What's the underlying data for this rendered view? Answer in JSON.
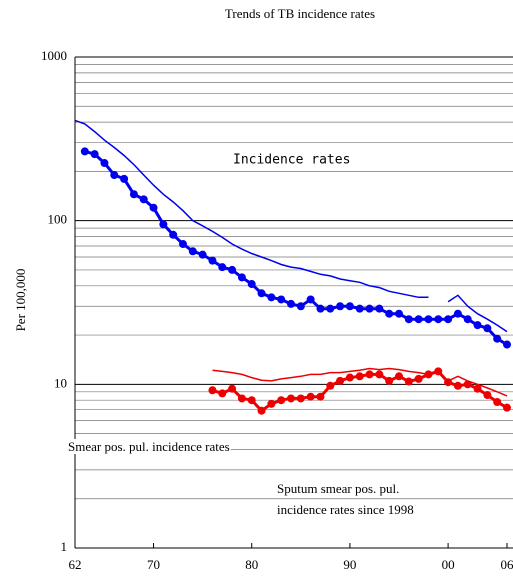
{
  "chart_data": {
    "type": "line",
    "title": "Trends of TB incidence rates",
    "ylabel": "Per 100,000",
    "log_y": true,
    "grid": true,
    "xlim": [
      62,
      106
    ],
    "xticks": [
      62,
      70,
      80,
      90,
      {
        "value": 100,
        "label": "00"
      },
      {
        "value": 106,
        "label": "06"
      }
    ],
    "ylim": [
      1,
      1000
    ],
    "yticks": [
      1,
      10,
      100,
      1000
    ],
    "yminorticks": [
      2,
      3,
      4,
      5,
      6,
      7,
      8,
      9,
      20,
      30,
      40,
      50,
      60,
      70,
      80,
      90,
      200,
      300,
      400,
      500,
      600,
      700,
      800,
      900
    ],
    "annotations": [
      "Incidence rates",
      "Smear pos. pul. incidence rates",
      "Sputum smear pos. pul.",
      "incidence rates since 1998"
    ],
    "series": [
      {
        "color": "#0000ee",
        "markers": false,
        "x": [
          62,
          63,
          64,
          65,
          66,
          67,
          68,
          69,
          70,
          71,
          72,
          73,
          74,
          75,
          76,
          77,
          78,
          79,
          80,
          81,
          82,
          83,
          84,
          85,
          86,
          87,
          88,
          89,
          90,
          91,
          92,
          93,
          94,
          95,
          96,
          97,
          98,
          99,
          100,
          101,
          102,
          103,
          104,
          105,
          106
        ],
        "values": [
          410,
          390,
          350,
          310,
          280,
          250,
          220,
          190,
          165,
          145,
          130,
          115,
          100,
          93,
          86,
          79,
          72,
          67,
          63,
          60,
          57,
          54,
          52,
          51,
          49,
          47,
          46,
          44,
          43,
          42,
          40,
          39,
          37,
          36,
          35,
          34,
          34,
          null,
          32,
          35,
          30,
          27,
          25,
          23,
          21
        ]
      },
      {
        "color": "#0000ee",
        "markers": true,
        "x": [
          63,
          64,
          65,
          66,
          67,
          68,
          69,
          70,
          71,
          72,
          73,
          74,
          75,
          76,
          77,
          78,
          79,
          80,
          81,
          82,
          83,
          84,
          85,
          86,
          87,
          88,
          89,
          90,
          91,
          92,
          93,
          94,
          95,
          96,
          97,
          98,
          99,
          100,
          101,
          102,
          103,
          104,
          105,
          106
        ],
        "values": [
          265,
          255,
          225,
          190,
          180,
          145,
          135,
          120,
          95,
          82,
          72,
          65,
          62,
          57,
          52,
          50,
          45,
          41,
          36,
          34,
          33,
          31,
          30,
          33,
          29,
          29,
          30,
          30,
          29,
          29,
          29,
          27,
          27,
          25,
          25,
          25,
          25,
          25,
          27,
          25,
          23,
          22,
          19,
          17.5
        ]
      },
      {
        "color": "#ee0000",
        "markers": false,
        "x": [
          76,
          77,
          78,
          79,
          80,
          81,
          82,
          83,
          84,
          85,
          86,
          87,
          88,
          89,
          90,
          91,
          92,
          93,
          94,
          95,
          96,
          97,
          98,
          99,
          100,
          101,
          102,
          103,
          104,
          105,
          106
        ],
        "values": [
          12.2,
          12,
          11.8,
          11.5,
          11,
          10.6,
          10.5,
          10.8,
          11,
          11.2,
          11.5,
          11.5,
          11.8,
          11.8,
          12,
          12.2,
          12.5,
          12.3,
          12.5,
          12.3,
          12,
          11.8,
          11.5,
          null,
          10.5,
          11.2,
          10.5,
          10,
          9.5,
          9,
          8.5
        ]
      },
      {
        "color": "#ee0000",
        "markers": true,
        "x": [
          76,
          77,
          78,
          79,
          80,
          81,
          82,
          83,
          84,
          85,
          86,
          87,
          88,
          89,
          90,
          91,
          92,
          93,
          94,
          95,
          96,
          97,
          98,
          99,
          100,
          101,
          102,
          103,
          104,
          105,
          106
        ],
        "values": [
          9.2,
          8.8,
          9.4,
          8.2,
          8,
          6.9,
          7.6,
          8,
          8.2,
          8.2,
          8.4,
          8.4,
          9.8,
          10.5,
          11,
          11.2,
          11.5,
          11.5,
          10.5,
          11.2,
          10.4,
          10.8,
          11.5,
          12,
          10.3,
          9.8,
          10,
          9.4,
          8.6,
          7.8,
          7.2
        ]
      }
    ]
  }
}
